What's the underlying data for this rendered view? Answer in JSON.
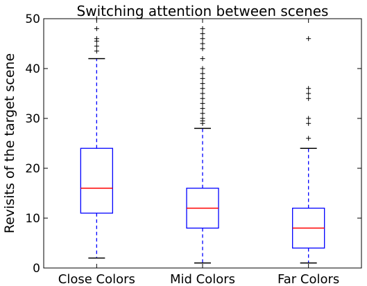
{
  "chart_data": {
    "type": "box",
    "title": "Switching attention between scenes",
    "xlabel": "",
    "ylabel": "Revisits of the target scene",
    "ylim": [
      0,
      50
    ],
    "yticks": [
      0,
      10,
      20,
      30,
      40,
      50
    ],
    "grid": false,
    "categories": [
      "Close Colors",
      "Mid Colors",
      "Far Colors"
    ],
    "boxes": [
      {
        "category": "Close Colors",
        "whisker_low": 2,
        "q1": 11,
        "median": 16,
        "q3": 24,
        "whisker_high": 42,
        "outliers": [
          43.5,
          44.5,
          45.5,
          46,
          48,
          50
        ]
      },
      {
        "category": "Mid Colors",
        "whisker_low": 1,
        "q1": 8,
        "median": 12,
        "q3": 16,
        "whisker_high": 28,
        "outliers": [
          29,
          29.5,
          30,
          31,
          32,
          33,
          34,
          35,
          36,
          37,
          38,
          39,
          40,
          42,
          44,
          45,
          46,
          47,
          48
        ]
      },
      {
        "category": "Far Colors",
        "whisker_low": 1,
        "q1": 4,
        "median": 8,
        "q3": 12,
        "whisker_high": 24,
        "outliers": [
          26,
          29,
          30,
          34,
          35,
          36,
          46
        ]
      }
    ],
    "colors": {
      "box": "#0000ff",
      "median": "#ff0000",
      "whisker": "#0000ff",
      "cap": "#000000",
      "flier": "#000000"
    }
  }
}
